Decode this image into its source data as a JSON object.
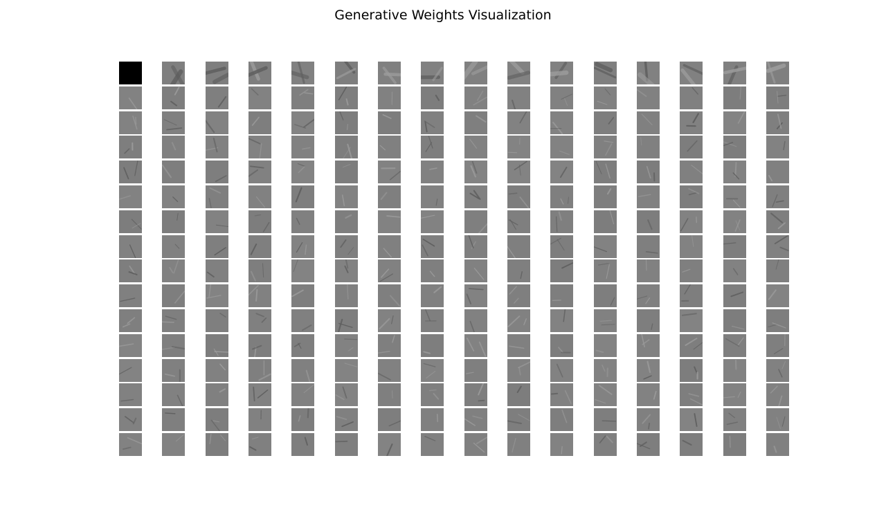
{
  "chart_data": {
    "type": "heatmap",
    "title": "Generative Weights Visualization",
    "rows": 16,
    "cols": 16,
    "colormap": "gray",
    "axes_visible": false,
    "background_level": 0.5
  }
}
